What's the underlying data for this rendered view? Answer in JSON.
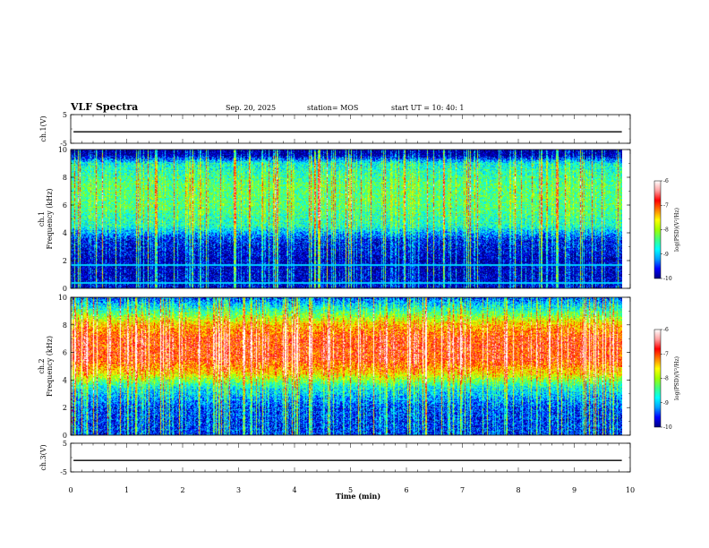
{
  "header": {
    "title": "VLF Spectra",
    "date": "Sep. 20, 2025",
    "station": "station= MOS",
    "start": "start  UT  =   10: 40: 1"
  },
  "chart_data": [
    {
      "type": "line",
      "panel": "ch1-voltage",
      "ylabel": "ch.1(V)",
      "ylim": [
        -5,
        5
      ],
      "yticks": [
        "5",
        "-5"
      ],
      "xlim": [
        0,
        10
      ],
      "series": [
        {
          "x": [
            0.05,
            9.85
          ],
          "y": [
            -1,
            -1
          ]
        }
      ]
    },
    {
      "type": "heatmap",
      "panel": "ch1-spectrogram",
      "ylabel": "ch.1\nFrequency (kHz)",
      "ylabel_lines": [
        "ch.1",
        "Frequency (kHz)"
      ],
      "ylim": [
        0,
        10
      ],
      "yticks": [
        "0",
        "2",
        "4",
        "6",
        "8",
        "10"
      ],
      "xlim": [
        0,
        10
      ],
      "data_end_x": 9.85,
      "z_range": [
        -10,
        -6
      ],
      "colorbar_label": "log(PSD)(V²/Hz)",
      "colorbar_ticks": [
        "-6",
        "-7",
        "-8",
        "-9",
        "-10"
      ],
      "texture": "broadband impulsive bursts (sferics) from 0-10 kHz, noise band 4-9 kHz ~-8.5, quiet -10 below 4 kHz, lines at 0.4 and 1.7 kHz",
      "base_level_by_kHz": [
        [
          0,
          -9.8
        ],
        [
          2,
          -9.9
        ],
        [
          3.5,
          -9.6
        ],
        [
          4.5,
          -8.7
        ],
        [
          6,
          -8.4
        ],
        [
          7.5,
          -8.4
        ],
        [
          9,
          -8.8
        ],
        [
          9.6,
          -10
        ],
        [
          10,
          -10
        ]
      ]
    },
    {
      "type": "heatmap",
      "panel": "ch2-spectrogram",
      "ylabel": "ch.2\nFrequency (kHz)",
      "ylabel_lines": [
        "ch.2",
        "Frequency (kHz)"
      ],
      "ylim": [
        0,
        10
      ],
      "yticks": [
        "0",
        "2",
        "4",
        "6",
        "8",
        "10"
      ],
      "xlim": [
        0,
        10
      ],
      "data_end_x": 9.85,
      "z_range": [
        -10,
        -6
      ],
      "colorbar_label": "log(PSD)(V²/Hz)",
      "colorbar_ticks": [
        "-6",
        "-7",
        "-8",
        "-9",
        "-10"
      ],
      "texture": "strong band 4.5-8 kHz ~-7, tapering to -9.5 near 10 kHz and below 3.5 kHz, frequent bursts",
      "base_level_by_kHz": [
        [
          0,
          -9.6
        ],
        [
          2,
          -9.5
        ],
        [
          3.5,
          -8.8
        ],
        [
          4.5,
          -7.6
        ],
        [
          5.5,
          -7.0
        ],
        [
          7.0,
          -7.0
        ],
        [
          8.0,
          -7.5
        ],
        [
          9.0,
          -8.6
        ],
        [
          10,
          -9.5
        ]
      ]
    },
    {
      "type": "line",
      "panel": "ch3-voltage",
      "ylabel": "ch.3(V)",
      "ylim": [
        -5,
        5
      ],
      "yticks": [
        "5",
        "-5"
      ],
      "xlim": [
        0,
        10
      ],
      "xlabel": "Time  (min)",
      "xticks": [
        "0",
        "1",
        "2",
        "3",
        "4",
        "5",
        "6",
        "7",
        "8",
        "9",
        "10"
      ],
      "series": [
        {
          "x": [
            0.05,
            9.85
          ],
          "y": [
            -1,
            -1
          ]
        }
      ]
    }
  ],
  "colormap": [
    "#000080",
    "#0000ff",
    "#00a0ff",
    "#00ffff",
    "#40ff80",
    "#a0ff00",
    "#ffff00",
    "#ff8000",
    "#ff0000",
    "#ffa0a0",
    "#ffffff"
  ]
}
